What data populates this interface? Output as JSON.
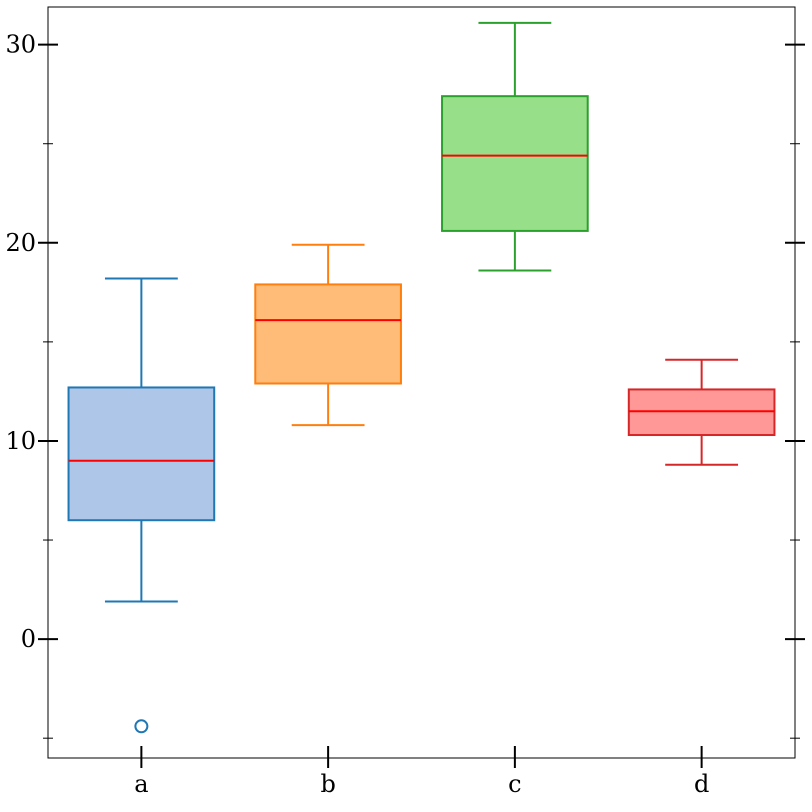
{
  "chart_data": {
    "type": "box",
    "categories": [
      "a",
      "b",
      "c",
      "d"
    ],
    "series": [
      {
        "category": "a",
        "min": 1.9,
        "q1": 6.0,
        "median": 9.0,
        "q3": 12.7,
        "max": 18.2,
        "outliers": [
          -4.4
        ],
        "color": "#1f77b4",
        "fill": "#aec7e8"
      },
      {
        "category": "b",
        "min": 10.8,
        "q1": 12.9,
        "median": 16.1,
        "q3": 17.9,
        "max": 19.9,
        "outliers": [],
        "color": "#ff7f0e",
        "fill": "#ffbb78"
      },
      {
        "category": "c",
        "min": 18.6,
        "q1": 20.6,
        "median": 24.4,
        "q3": 27.4,
        "max": 31.1,
        "outliers": [],
        "color": "#2ca02c",
        "fill": "#98df8a"
      },
      {
        "category": "d",
        "min": 8.8,
        "q1": 10.3,
        "median": 11.5,
        "q3": 12.6,
        "max": 14.1,
        "outliers": [],
        "color": "#d62728",
        "fill": "#ff9896"
      }
    ],
    "median_color": "#ff0000",
    "y_ticks": [
      0,
      10,
      20,
      30
    ],
    "y_minor_ticks": [
      -5,
      5,
      15,
      25
    ],
    "ylim": [
      -6.0,
      31.9
    ],
    "title": "",
    "xlabel": "",
    "ylabel": "",
    "grid": false
  }
}
